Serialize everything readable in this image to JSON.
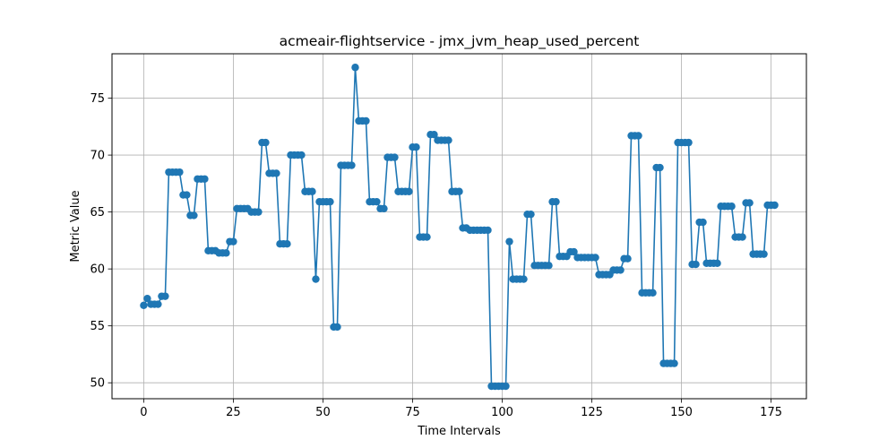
{
  "chart_data": {
    "type": "line",
    "title": "acmeair-flightservice - jmx_jvm_heap_used_percent",
    "xlabel": "Time Intervals",
    "ylabel": "Metric Value",
    "xlim": [
      -8.85,
      184.85
    ],
    "ylim": [
      48.6,
      78.9
    ],
    "grid": true,
    "x_ticks": [
      0,
      25,
      50,
      75,
      100,
      125,
      150,
      175
    ],
    "x_tick_labels": [
      "0",
      "25",
      "50",
      "75",
      "100",
      "125",
      "150",
      "175"
    ],
    "y_ticks": [
      50,
      55,
      60,
      65,
      70,
      75
    ],
    "y_tick_labels": [
      "50",
      "55",
      "60",
      "65",
      "70",
      "75"
    ],
    "color": "#1f77b4",
    "marker": "circle",
    "series": [
      {
        "values": [
          56.8,
          57.4,
          56.9,
          56.9,
          56.9,
          57.6,
          57.6,
          68.5,
          68.5,
          68.5,
          68.5,
          66.5,
          66.5,
          64.7,
          64.7,
          67.9,
          67.9,
          67.9,
          61.6,
          61.6,
          61.6,
          61.4,
          61.4,
          61.4,
          62.4,
          62.4,
          65.3,
          65.3,
          65.3,
          65.3,
          65.0,
          65.0,
          65.0,
          71.1,
          71.1,
          68.4,
          68.4,
          68.4,
          62.2,
          62.2,
          62.2,
          70.0,
          70.0,
          70.0,
          70.0,
          66.8,
          66.8,
          66.8,
          59.1,
          65.9,
          65.9,
          65.9,
          65.9,
          54.9,
          54.9,
          69.1,
          69.1,
          69.1,
          69.1,
          77.7,
          73.0,
          73.0,
          73.0,
          65.9,
          65.9,
          65.9,
          65.3,
          65.3,
          69.8,
          69.8,
          69.8,
          66.8,
          66.8,
          66.8,
          66.8,
          70.7,
          70.7,
          62.8,
          62.8,
          62.8,
          71.8,
          71.8,
          71.3,
          71.3,
          71.3,
          71.3,
          66.8,
          66.8,
          66.8,
          63.6,
          63.6,
          63.4,
          63.4,
          63.4,
          63.4,
          63.4,
          63.4,
          49.7,
          49.7,
          49.7,
          49.7,
          49.7,
          62.4,
          59.1,
          59.1,
          59.1,
          59.1,
          64.8,
          64.8,
          60.3,
          60.3,
          60.3,
          60.3,
          60.3,
          65.9,
          65.9,
          61.1,
          61.1,
          61.1,
          61.5,
          61.5,
          61.0,
          61.0,
          61.0,
          61.0,
          61.0,
          61.0,
          59.5,
          59.5,
          59.5,
          59.5,
          59.9,
          59.9,
          59.9,
          60.9,
          60.9,
          71.7,
          71.7,
          71.7,
          57.9,
          57.9,
          57.9,
          57.9,
          68.9,
          68.9,
          51.7,
          51.7,
          51.7,
          51.7,
          71.1,
          71.1,
          71.1,
          71.1,
          60.4,
          60.4,
          64.1,
          64.1,
          60.5,
          60.5,
          60.5,
          60.5,
          65.5,
          65.5,
          65.5,
          65.5,
          62.8,
          62.8,
          62.8,
          65.8,
          65.8,
          61.3,
          61.3,
          61.3,
          61.3,
          65.6,
          65.6,
          65.6
        ]
      }
    ]
  }
}
